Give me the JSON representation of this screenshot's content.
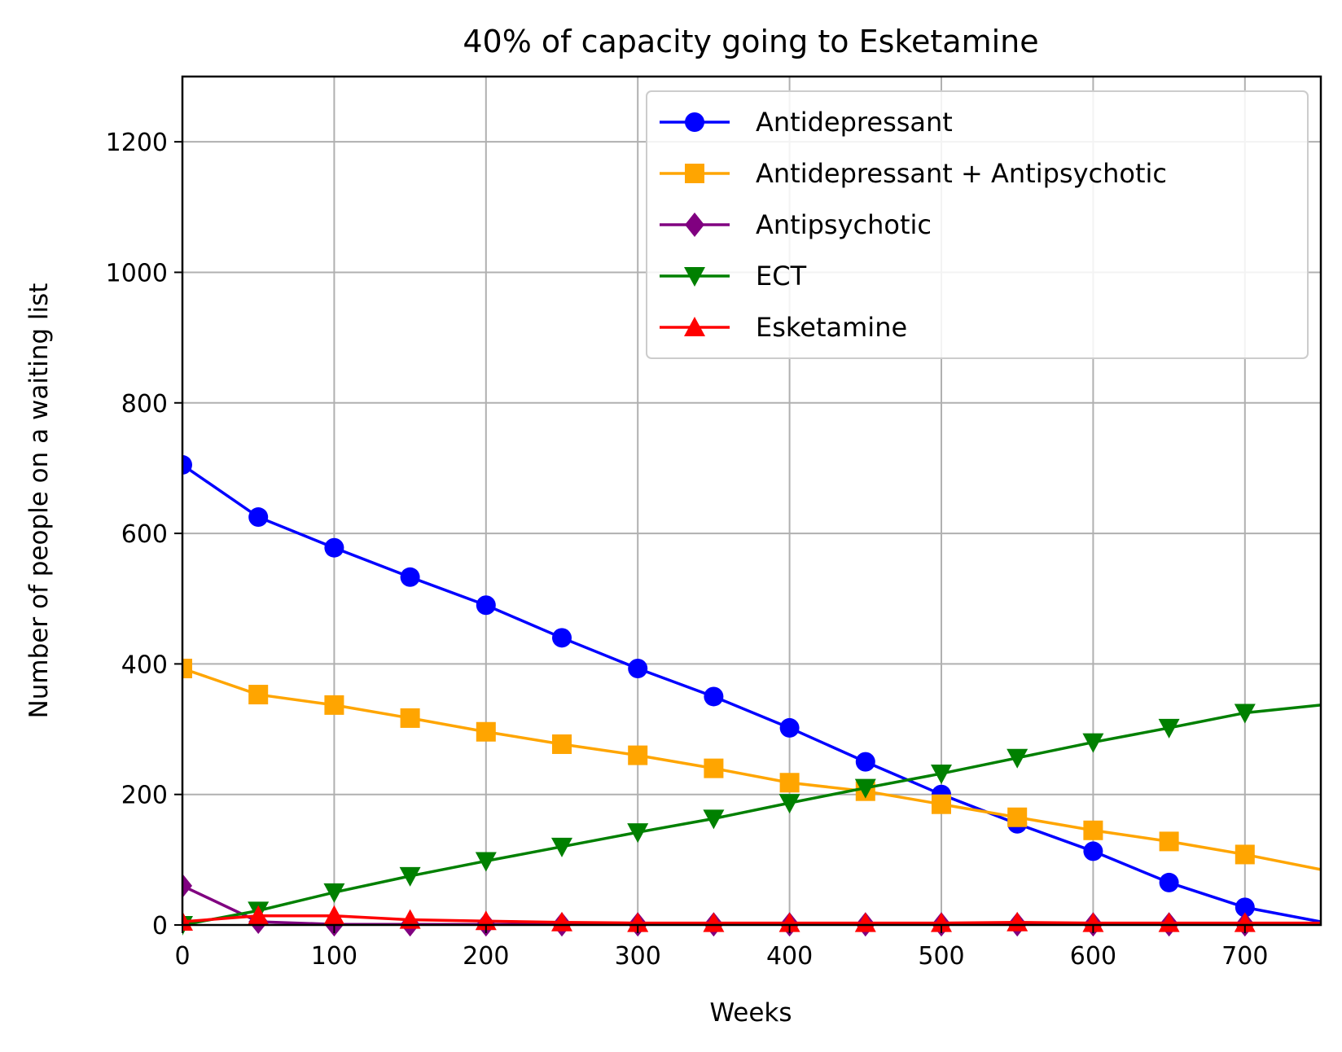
{
  "chart_data": {
    "type": "line",
    "title": "40% of capacity going to Esketamine",
    "xlabel": "Weeks",
    "ylabel": "Number of people on a waiting list",
    "xlim": [
      0,
      750
    ],
    "ylim": [
      0,
      1300
    ],
    "xticks": [
      0,
      100,
      200,
      300,
      400,
      500,
      600,
      700
    ],
    "yticks": [
      0,
      200,
      400,
      600,
      800,
      1000,
      1200
    ],
    "grid": true,
    "legend_position": "top-right",
    "x": [
      0,
      50,
      100,
      150,
      200,
      250,
      300,
      350,
      400,
      450,
      500,
      550,
      600,
      650,
      700,
      750
    ],
    "series": [
      {
        "name": "Antidepressant",
        "color": "#0000ff",
        "marker": "circle",
        "values": [
          705,
          625,
          578,
          533,
          490,
          440,
          393,
          350,
          302,
          250,
          200,
          155,
          113,
          65,
          27,
          5
        ]
      },
      {
        "name": "Antidepressant + Antipsychotic",
        "color": "#ffa500",
        "marker": "square",
        "values": [
          393,
          353,
          337,
          317,
          296,
          277,
          260,
          240,
          218,
          205,
          185,
          165,
          145,
          128,
          108,
          85
        ]
      },
      {
        "name": "Antipsychotic",
        "color": "#800080",
        "marker": "diamond",
        "values": [
          60,
          5,
          1,
          1,
          1,
          1,
          1,
          1,
          1,
          1,
          1,
          1,
          1,
          1,
          1,
          1
        ]
      },
      {
        "name": "ECT",
        "color": "#008000",
        "marker": "triangle-down",
        "values": [
          0,
          22,
          50,
          75,
          98,
          120,
          142,
          163,
          187,
          210,
          232,
          256,
          280,
          302,
          325,
          337
        ]
      },
      {
        "name": "Esketamine",
        "color": "#ff0000",
        "marker": "triangle-up",
        "values": [
          5,
          14,
          14,
          8,
          6,
          4,
          3,
          3,
          3,
          3,
          3,
          4,
          3,
          3,
          3,
          3
        ]
      }
    ]
  }
}
